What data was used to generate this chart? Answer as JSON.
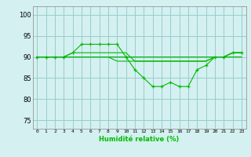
{
  "xlabel": "Humidité relative (%)",
  "bg_color": "#d4f0f0",
  "grid_color": "#99cccc",
  "line_color": "#00bb00",
  "marker_color": "#00bb00",
  "xlim": [
    -0.5,
    23.5
  ],
  "ylim": [
    73,
    102
  ],
  "yticks": [
    75,
    80,
    85,
    90,
    95,
    100
  ],
  "xticks": [
    0,
    1,
    2,
    3,
    4,
    5,
    6,
    7,
    8,
    9,
    10,
    11,
    12,
    13,
    14,
    15,
    16,
    17,
    18,
    19,
    20,
    21,
    22,
    23
  ],
  "series": [
    {
      "x": [
        0,
        1,
        2,
        3,
        4,
        5,
        6,
        7,
        8,
        9,
        10,
        11,
        12,
        13,
        14,
        15,
        16,
        17,
        18,
        19,
        20,
        21,
        22,
        23
      ],
      "y": [
        90,
        90,
        90,
        90,
        91,
        93,
        93,
        93,
        93,
        93,
        90,
        87,
        85,
        83,
        83,
        84,
        83,
        83,
        87,
        88,
        90,
        90,
        91,
        91
      ],
      "marker": true
    },
    {
      "x": [
        0,
        1,
        2,
        3,
        4,
        5,
        6,
        7,
        8,
        9,
        10,
        11,
        12,
        13,
        14,
        15,
        16,
        17,
        18,
        19,
        20,
        21,
        22,
        23
      ],
      "y": [
        90,
        90,
        90,
        90,
        90,
        90,
        90,
        90,
        90,
        90,
        90,
        90,
        90,
        90,
        90,
        90,
        90,
        90,
        90,
        90,
        90,
        90,
        91,
        91
      ],
      "marker": false
    },
    {
      "x": [
        0,
        1,
        2,
        3,
        4,
        5,
        6,
        7,
        8,
        9,
        10,
        11,
        12,
        13,
        14,
        15,
        16,
        17,
        18,
        19,
        20,
        21,
        22,
        23
      ],
      "y": [
        90,
        90,
        90,
        90,
        91,
        91,
        91,
        91,
        91,
        91,
        91,
        89,
        89,
        89,
        89,
        89,
        89,
        89,
        89,
        89,
        90,
        90,
        91,
        91
      ],
      "marker": false
    },
    {
      "x": [
        0,
        1,
        2,
        3,
        4,
        5,
        6,
        7,
        8,
        9,
        10,
        11,
        12,
        13,
        14,
        15,
        16,
        17,
        18,
        19,
        20,
        21,
        22,
        23
      ],
      "y": [
        90,
        90,
        90,
        90,
        90,
        90,
        90,
        90,
        90,
        89,
        89,
        89,
        89,
        89,
        89,
        89,
        89,
        89,
        89,
        89,
        90,
        90,
        90,
        90
      ],
      "marker": false
    }
  ]
}
